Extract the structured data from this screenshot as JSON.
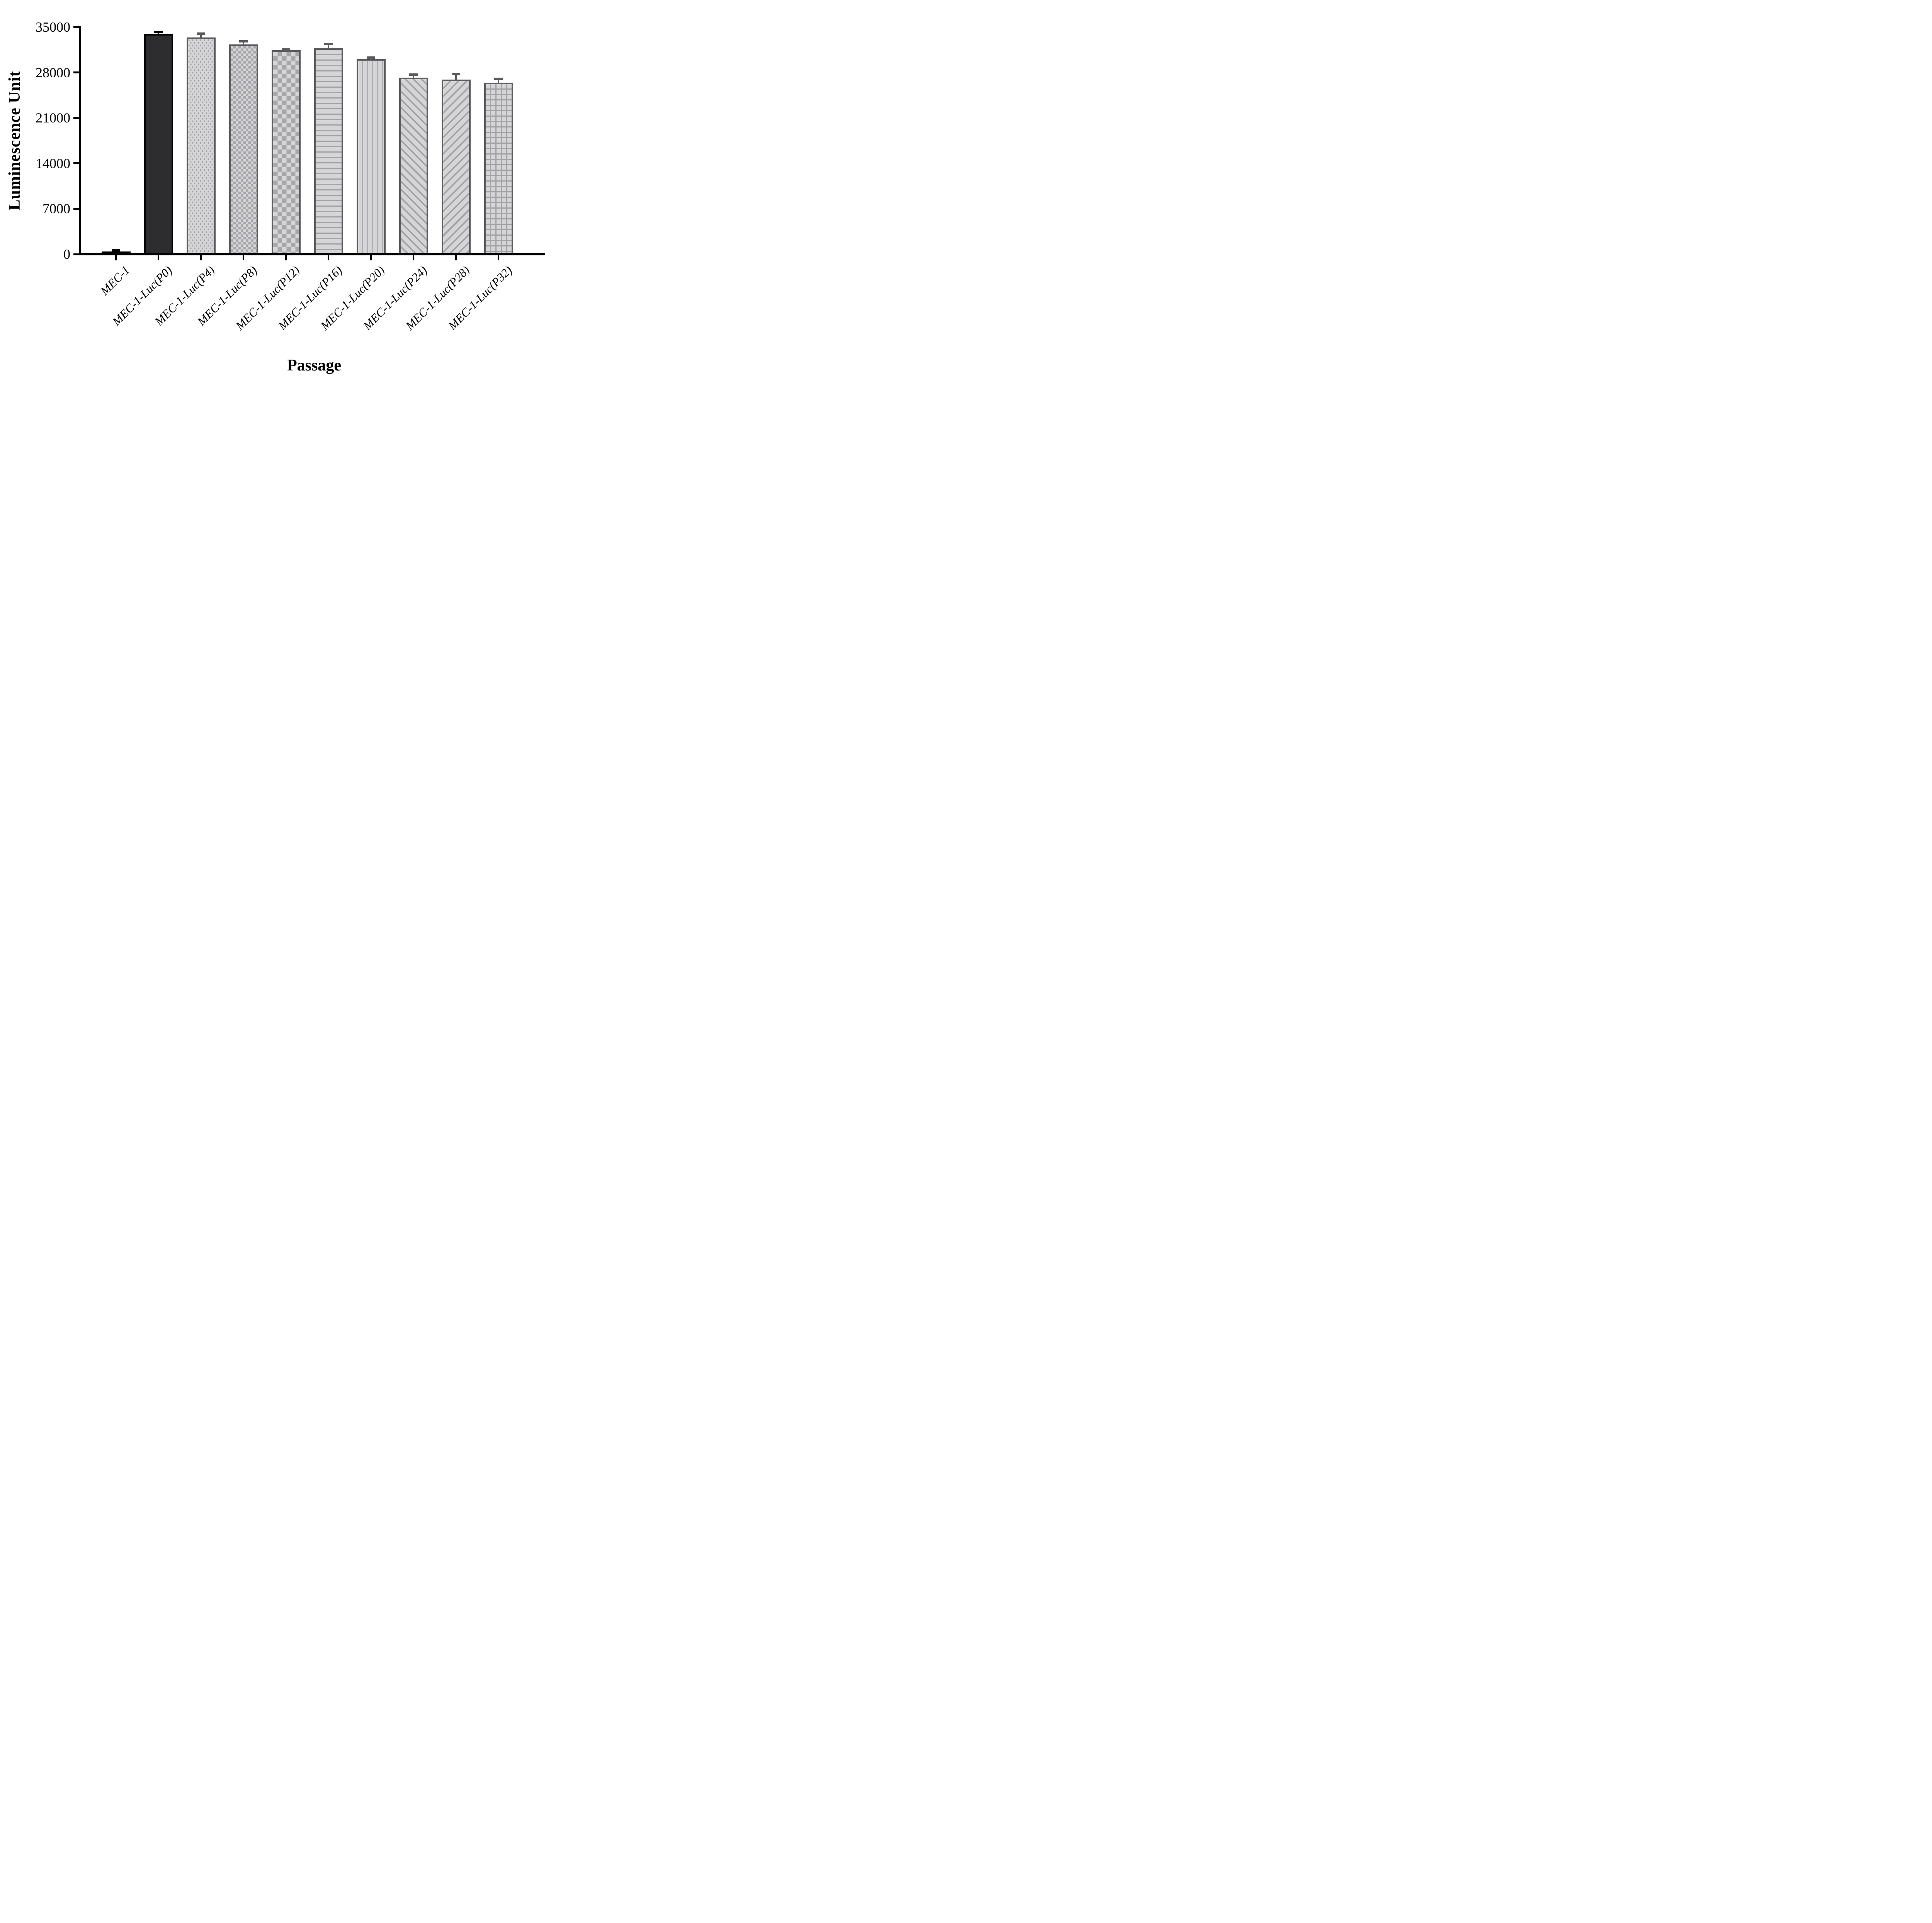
{
  "chart_data": {
    "type": "bar",
    "title": "",
    "ylabel": "Luminescence Unit",
    "xlabel": "Passage",
    "ylim": [
      0,
      35000
    ],
    "y_ticks": [
      0,
      7000,
      14000,
      21000,
      28000,
      35000
    ],
    "y_tick_labels": [
      "0",
      "7000",
      "14000",
      "21000",
      "28000",
      "35000"
    ],
    "grid": false,
    "legend": "none",
    "error_bars": "upper standard-deviation with T-cap",
    "categories": [
      "MEC-1",
      "MEC-1-Luc(P0)",
      "MEC-1-Luc(P4)",
      "MEC-1-Luc(P8)",
      "MEC-1-Luc(P12)",
      "MEC-1-Luc(P16)",
      "MEC-1-Luc(P20)",
      "MEC-1-Luc(P24)",
      "MEC-1-Luc(P28)",
      "MEC-1-Luc(P32)"
    ],
    "values": [
      400,
      33900,
      33400,
      32300,
      31400,
      31700,
      30050,
      27200,
      26900,
      26400
    ],
    "errors": [
      200,
      350,
      600,
      500,
      200,
      700,
      250,
      450,
      850,
      600
    ],
    "bars": [
      {
        "label": "MEC-1",
        "value": 400,
        "error": 200,
        "pattern": "solid-black",
        "stroke": "#000000"
      },
      {
        "label": "MEC-1-Luc(P0)",
        "value": 33900,
        "error": 350,
        "pattern": "solid-dark",
        "stroke": "#000000"
      },
      {
        "label": "MEC-1-Luc(P4)",
        "value": 33400,
        "error": 600,
        "pattern": "dots",
        "stroke": "#5c5c5e"
      },
      {
        "label": "MEC-1-Luc(P8)",
        "value": 32300,
        "error": 500,
        "pattern": "checker-fine",
        "stroke": "#5c5c5e"
      },
      {
        "label": "MEC-1-Luc(P12)",
        "value": 31400,
        "error": 200,
        "pattern": "checker-coarse",
        "stroke": "#5c5c5e"
      },
      {
        "label": "MEC-1-Luc(P16)",
        "value": 31700,
        "error": 700,
        "pattern": "hlines",
        "stroke": "#5c5c5e"
      },
      {
        "label": "MEC-1-Luc(P20)",
        "value": 30050,
        "error": 250,
        "pattern": "vlines",
        "stroke": "#5c5c5e"
      },
      {
        "label": "MEC-1-Luc(P24)",
        "value": 27200,
        "error": 450,
        "pattern": "diag-up",
        "stroke": "#5c5c5e"
      },
      {
        "label": "MEC-1-Luc(P28)",
        "value": 26900,
        "error": 850,
        "pattern": "diag-down",
        "stroke": "#5c5c5e"
      },
      {
        "label": "MEC-1-Luc(P32)",
        "value": 26400,
        "error": 600,
        "pattern": "grid",
        "stroke": "#5c5c5e"
      }
    ],
    "colors": {
      "bar_fill_light": "#d5d5d7",
      "pattern_mark": "#a2a2a7",
      "bar_stroke_gray": "#5c5c5e",
      "bar_fill_dark": "#2d2d2f",
      "bar_stroke_black": "#000000",
      "axis": "#000000"
    }
  }
}
